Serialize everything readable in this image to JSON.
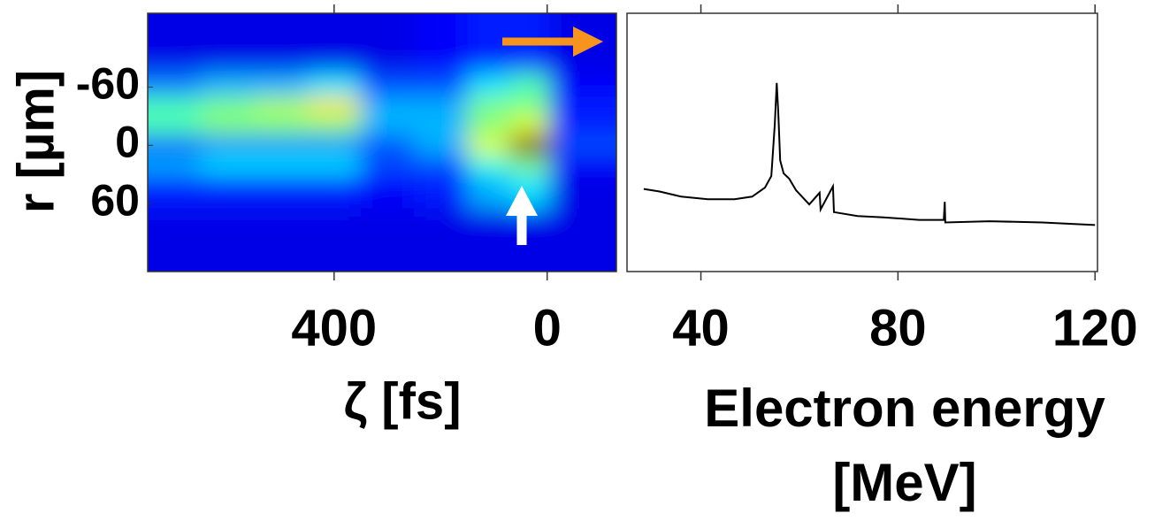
{
  "chart_data": [
    {
      "type": "heatmap",
      "x_label": "ζ [fs]",
      "y_label": "r [µm]",
      "x": [
        700,
        600,
        500,
        400,
        300,
        200,
        100,
        40,
        -50
      ],
      "y": [
        -90,
        -60,
        -40,
        -20,
        0,
        20,
        40,
        90
      ],
      "z": [
        [
          0.1,
          0.1,
          0.1,
          0.1,
          0.1,
          0.12,
          0.15,
          0.15,
          0.1
        ],
        [
          0.25,
          0.3,
          0.3,
          0.35,
          0.2,
          0.2,
          0.35,
          0.45,
          0.12
        ],
        [
          0.45,
          0.5,
          0.55,
          0.65,
          0.3,
          0.3,
          0.5,
          0.5,
          0.15
        ],
        [
          0.45,
          0.5,
          0.5,
          0.5,
          0.3,
          0.3,
          0.5,
          0.6,
          0.15
        ],
        [
          0.2,
          0.25,
          0.25,
          0.25,
          0.2,
          0.3,
          0.6,
          1,
          0.2
        ],
        [
          0.3,
          0.35,
          0.35,
          0.35,
          0.2,
          0.2,
          0.4,
          0.5,
          0.12
        ],
        [
          0.15,
          0.15,
          0.15,
          0.15,
          0.12,
          0.15,
          0.3,
          0.35,
          0.1
        ],
        [
          0.1,
          0.1,
          0.1,
          0.1,
          0.1,
          0.1,
          0.1,
          0.1,
          0.1
        ]
      ],
      "xlim": [
        750,
        -130
      ],
      "xticks": [
        400,
        0
      ],
      "ylim": [
        -136,
        130
      ],
      "yticks": [
        -60,
        0,
        60
      ]
    },
    {
      "type": "line",
      "x_label": "Electron energy [MeV]",
      "color": "#000000",
      "x": [
        28.4,
        31.6,
        36,
        41.4,
        46.8,
        50.4,
        53,
        54.3,
        55,
        55.4,
        55.7,
        56.1,
        56.8,
        57.9,
        59.3,
        62,
        64.1,
        64.3,
        66.8,
        67,
        71.8,
        77.1,
        84.3,
        89.3,
        89.5,
        89.6,
        98.6,
        109.3,
        120
      ],
      "values": [
        32,
        31,
        29,
        28,
        28,
        29,
        32.5,
        37,
        57,
        73,
        62,
        43,
        38,
        36,
        31.5,
        26,
        30.5,
        24,
        33,
        23,
        21.5,
        21,
        20,
        20,
        27,
        19,
        19.5,
        19,
        18
      ],
      "xlim": [
        25,
        120.5
      ],
      "xticks": [
        40,
        80,
        120
      ],
      "ylim": [
        0,
        100
      ]
    }
  ]
}
